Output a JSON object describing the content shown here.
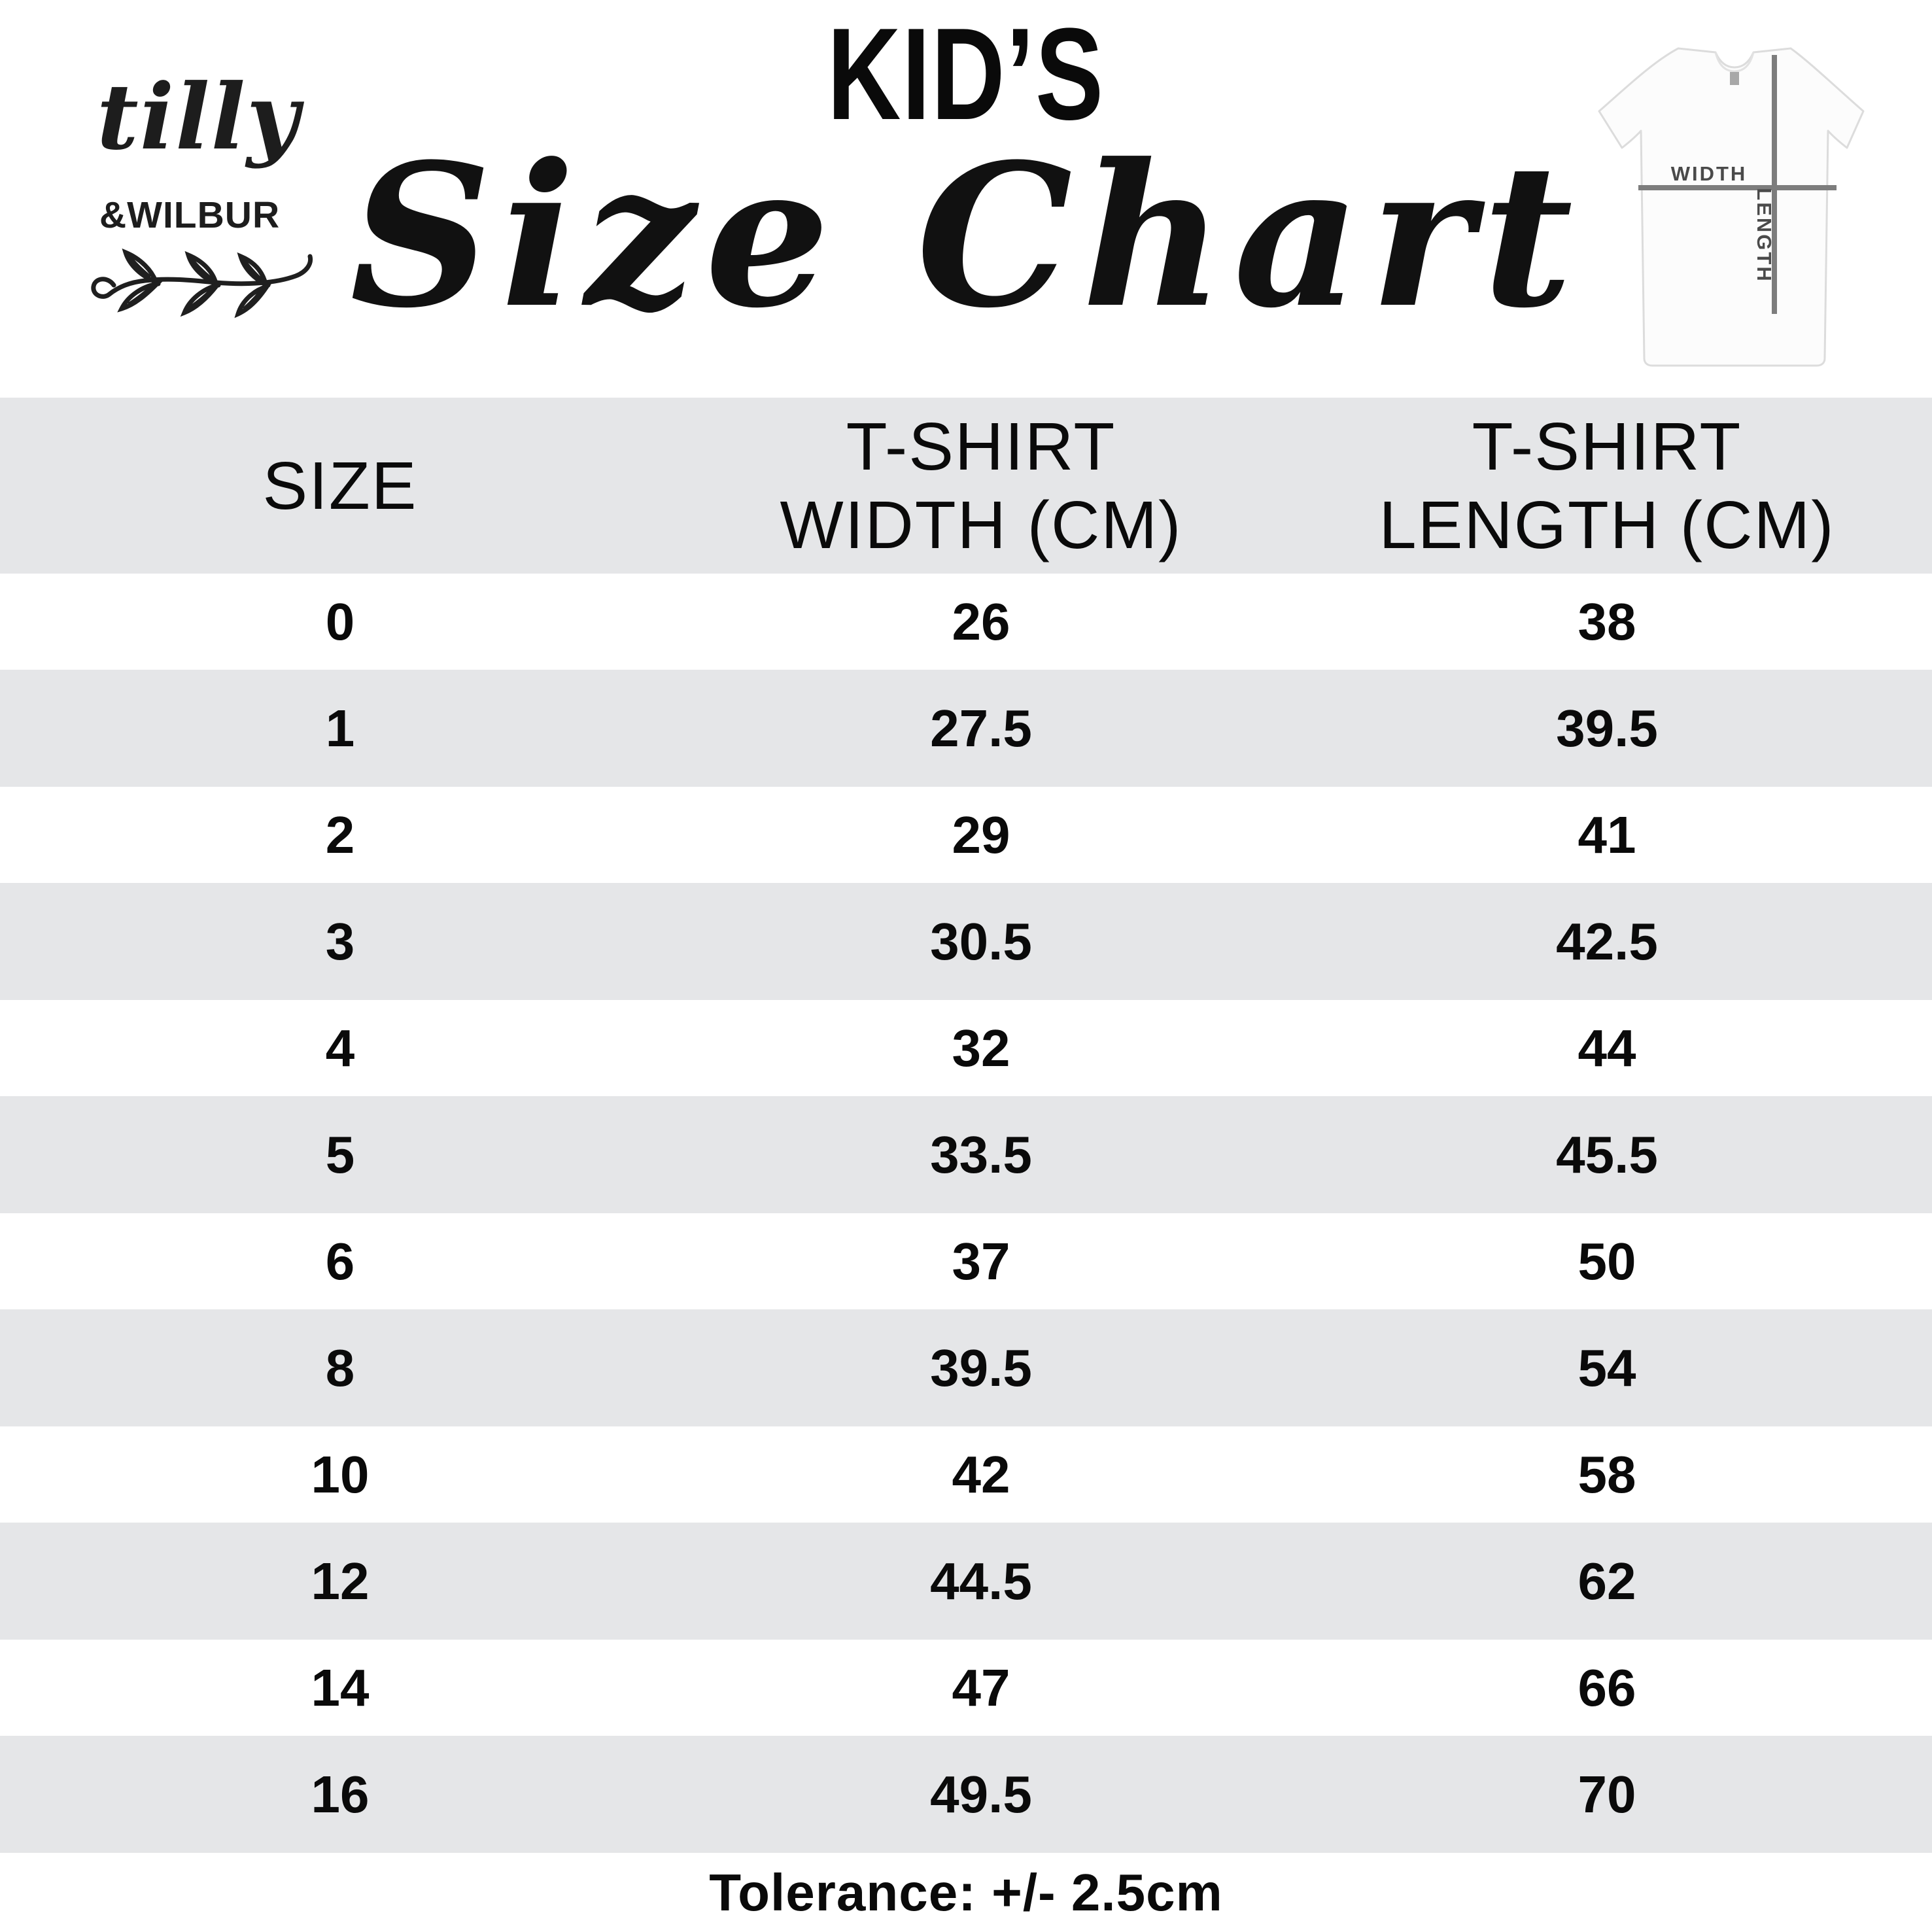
{
  "brand": {
    "script_name": "tilly",
    "caps_name": "&WILBUR"
  },
  "title": {
    "kicker": "KID’S",
    "main": "Size Chart"
  },
  "tshirt_diagram": {
    "width_label": "WIDTH",
    "length_label": "LENGTH"
  },
  "table": {
    "columns": [
      {
        "lines": [
          "SIZE"
        ]
      },
      {
        "lines": [
          "T-SHIRT",
          "WIDTH (CM)"
        ]
      },
      {
        "lines": [
          "T-SHIRT",
          "LENGTH (CM)"
        ]
      }
    ],
    "rows": [
      [
        "0",
        "26",
        "38"
      ],
      [
        "1",
        "27.5",
        "39.5"
      ],
      [
        "2",
        "29",
        "41"
      ],
      [
        "3",
        "30.5",
        "42.5"
      ],
      [
        "4",
        "32",
        "44"
      ],
      [
        "5",
        "33.5",
        "45.5"
      ],
      [
        "6",
        "37",
        "50"
      ],
      [
        "8",
        "39.5",
        "54"
      ],
      [
        "10",
        "42",
        "58"
      ],
      [
        "12",
        "44.5",
        "62"
      ],
      [
        "14",
        "47",
        "66"
      ],
      [
        "16",
        "49.5",
        "70"
      ]
    ]
  },
  "footnote": "Tolerance: +/- 2.5cm",
  "colors": {
    "band_gray": "#e5e6e8",
    "text_black": "#0a0a0a",
    "diagram_line_gray": "#7d7d7d",
    "diagram_label_gray": "#4a4a4a"
  },
  "chart_data": {
    "type": "table",
    "title": "KID'S Size Chart",
    "columns": [
      "SIZE",
      "T-SHIRT WIDTH (CM)",
      "T-SHIRT LENGTH (CM)"
    ],
    "rows": [
      [
        0,
        26,
        38
      ],
      [
        1,
        27.5,
        39.5
      ],
      [
        2,
        29,
        41
      ],
      [
        3,
        30.5,
        42.5
      ],
      [
        4,
        32,
        44
      ],
      [
        5,
        33.5,
        45.5
      ],
      [
        6,
        37,
        50
      ],
      [
        8,
        39.5,
        54
      ],
      [
        10,
        42,
        58
      ],
      [
        12,
        44.5,
        62
      ],
      [
        14,
        47,
        66
      ],
      [
        16,
        49.5,
        70
      ]
    ],
    "footnote": "Tolerance: +/- 2.5cm"
  }
}
